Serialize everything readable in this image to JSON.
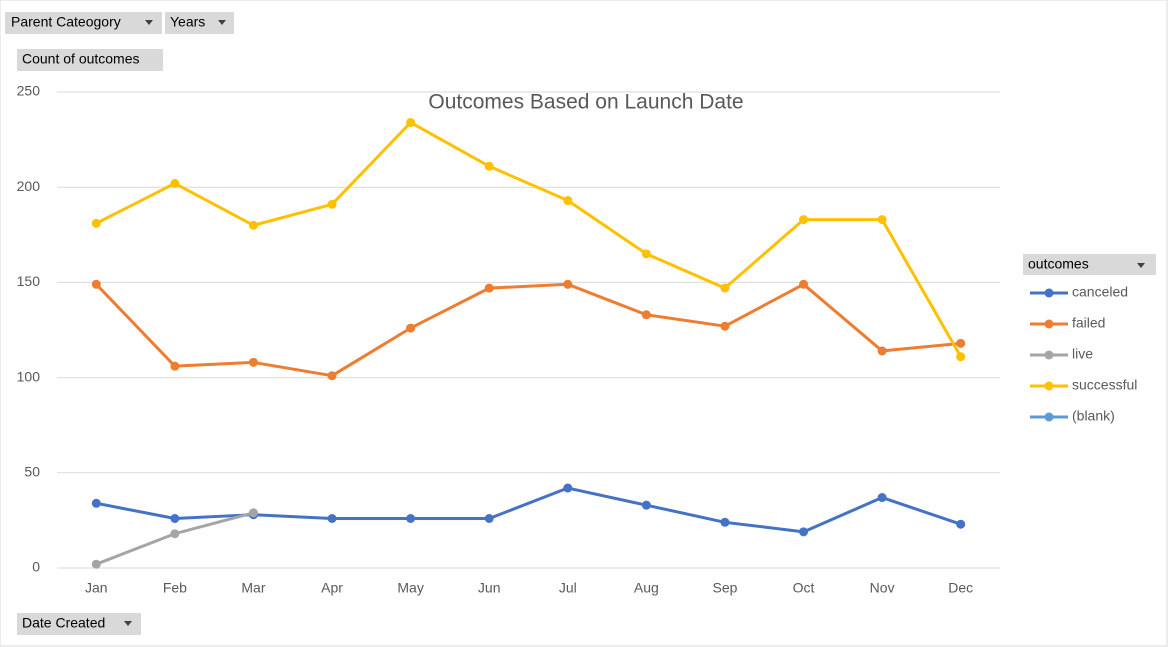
{
  "pivot_fields": {
    "filters": [
      "Parent Cateogory",
      "Years"
    ],
    "values": "Count of outcomes",
    "axis": "Date Created"
  },
  "chart_data": {
    "type": "line",
    "title": "Outcomes Based on Launch Date",
    "categories": [
      "Jan",
      "Feb",
      "Mar",
      "Apr",
      "May",
      "Jun",
      "Jul",
      "Aug",
      "Sep",
      "Oct",
      "Nov",
      "Dec"
    ],
    "series": [
      {
        "name": "canceled",
        "color": "#4472c4",
        "values": [
          34,
          26,
          28,
          26,
          26,
          26,
          42,
          33,
          24,
          19,
          37,
          23
        ]
      },
      {
        "name": "failed",
        "color": "#ed7d31",
        "values": [
          149,
          106,
          108,
          101,
          126,
          147,
          149,
          133,
          127,
          149,
          114,
          118
        ]
      },
      {
        "name": "live",
        "color": "#a5a5a5",
        "values": [
          2,
          18,
          29,
          null,
          null,
          null,
          null,
          null,
          null,
          null,
          null,
          null
        ]
      },
      {
        "name": "successful",
        "color": "#ffc000",
        "values": [
          181,
          202,
          180,
          191,
          234,
          211,
          193,
          165,
          147,
          183,
          183,
          111
        ]
      },
      {
        "name": "(blank)",
        "color": "#5b9bd5",
        "values": [
          null,
          null,
          null,
          null,
          null,
          null,
          null,
          null,
          null,
          null,
          null,
          null
        ]
      }
    ],
    "ylim": [
      0,
      250
    ],
    "yticks": [
      0,
      50,
      100,
      150,
      200,
      250
    ],
    "grid": true,
    "legend_title": "outcomes",
    "legend_position": "right"
  }
}
